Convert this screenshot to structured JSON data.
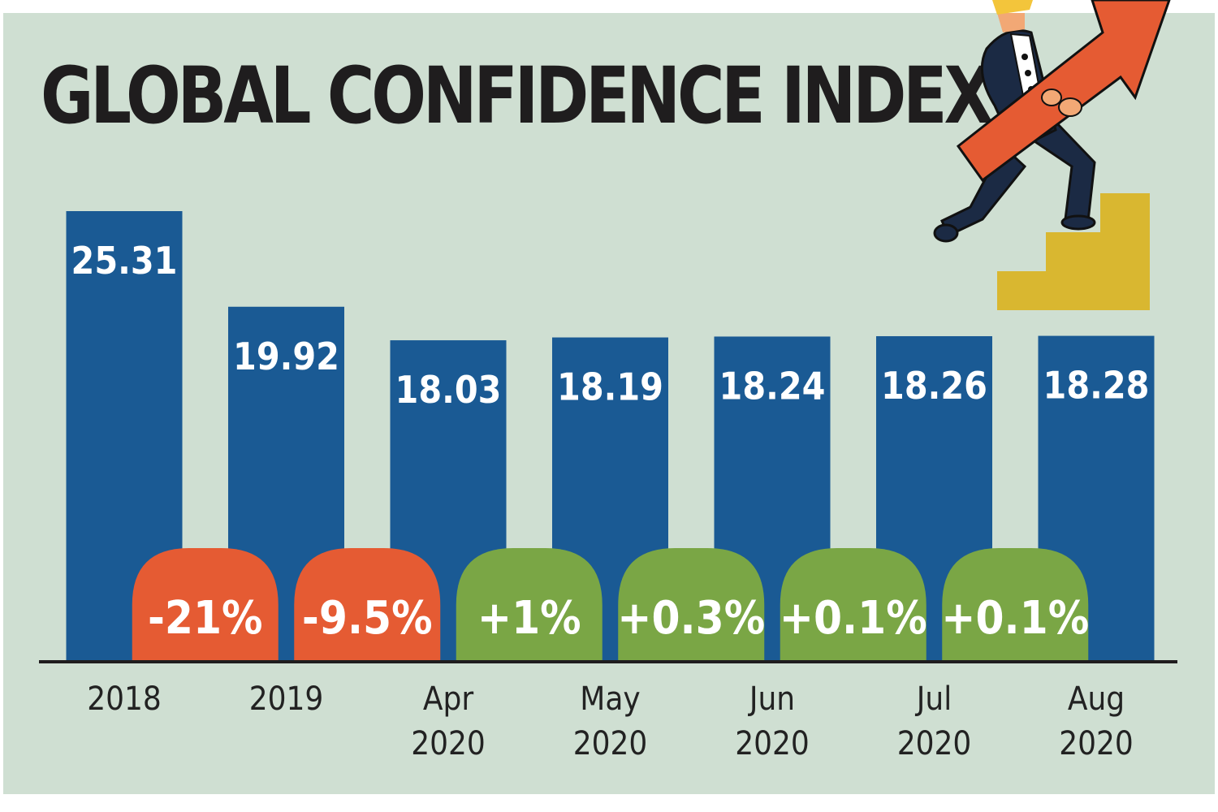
{
  "title": "GLOBAL CONFIDENCE INDEX",
  "colors": {
    "background": "#cfdfd2",
    "bar": "#1a5a94",
    "decrease": "#e55b33",
    "increase": "#7aa645",
    "axis": "#1f1d1e",
    "stairs": "#d9b730"
  },
  "chart_data": {
    "type": "bar",
    "title": "GLOBAL CONFIDENCE INDEX",
    "xlabel": "",
    "ylabel": "",
    "ylim": [
      0,
      28
    ],
    "categories": [
      [
        "2018"
      ],
      [
        "2019"
      ],
      [
        "Apr",
        "2020"
      ],
      [
        "May",
        "2020"
      ],
      [
        "Jun",
        "2020"
      ],
      [
        "Jul",
        "2020"
      ],
      [
        "Aug",
        "2020"
      ]
    ],
    "values": [
      25.31,
      19.92,
      18.03,
      18.19,
      18.24,
      18.26,
      18.28
    ],
    "value_labels": [
      "25.31",
      "19.92",
      "18.03",
      "18.19",
      "18.24",
      "18.26",
      "18.28"
    ],
    "changes": [
      {
        "label": "-21%",
        "direction": "down"
      },
      {
        "label": "-9.5%",
        "direction": "down"
      },
      {
        "label": "+1%",
        "direction": "up"
      },
      {
        "label": "+0.3%",
        "direction": "up"
      },
      {
        "label": "+0.1%",
        "direction": "up"
      },
      {
        "label": "+0.1%",
        "direction": "up"
      }
    ]
  }
}
